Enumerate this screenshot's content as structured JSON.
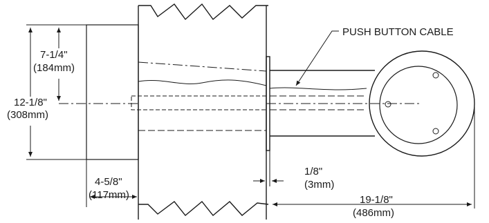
{
  "labels": {
    "cable": "PUSH BUTTON CABLE",
    "dim_height_in": "7-1/4\"",
    "dim_height_mm": "(184mm)",
    "dim_total_height_in": "12-1/8\"",
    "dim_total_height_mm": "(308mm)",
    "dim_depth_in": "4-5/8\"",
    "dim_depth_mm": "(117mm)",
    "dim_plate_in": "1/8\"",
    "dim_plate_mm": "(3mm)",
    "dim_length_in": "19-1/8\"",
    "dim_length_mm": "(486mm)"
  },
  "colors": {
    "line": "#1a1a1a",
    "background": "#ffffff"
  }
}
